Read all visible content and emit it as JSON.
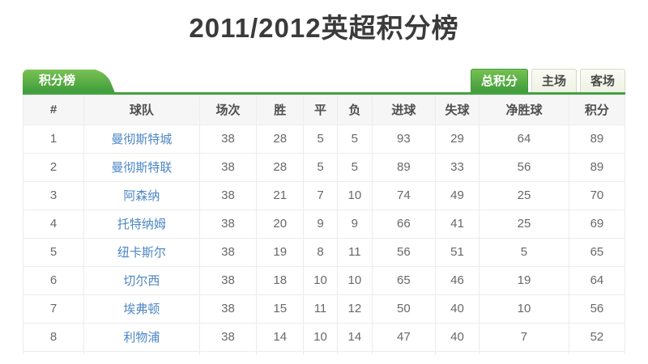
{
  "page": {
    "title": "2011/2012英超积分榜"
  },
  "tabs": {
    "standings_tab": "积分榜"
  },
  "filters": [
    {
      "id": "total",
      "label": "总积分",
      "active": true
    },
    {
      "id": "home",
      "label": "主场",
      "active": false
    },
    {
      "id": "away",
      "label": "客场",
      "active": false
    }
  ],
  "colors": {
    "accent_green": "#47a043",
    "link_blue": "#4c86c4",
    "header_bg": "#f6f6f6",
    "cell_border": "#ececec"
  },
  "table": {
    "headers": [
      "#",
      "球队",
      "场次",
      "胜",
      "平",
      "负",
      "进球",
      "失球",
      "净胜球",
      "积分"
    ],
    "rows": [
      {
        "rank": "1",
        "team": "曼彻斯特城",
        "stats": [
          "38",
          "28",
          "5",
          "5",
          "93",
          "29",
          "64",
          "89"
        ]
      },
      {
        "rank": "2",
        "team": "曼彻斯特联",
        "stats": [
          "38",
          "28",
          "5",
          "5",
          "89",
          "33",
          "56",
          "89"
        ]
      },
      {
        "rank": "3",
        "team": "阿森纳",
        "stats": [
          "38",
          "21",
          "7",
          "10",
          "74",
          "49",
          "25",
          "70"
        ]
      },
      {
        "rank": "4",
        "team": "托特纳姆",
        "stats": [
          "38",
          "20",
          "9",
          "9",
          "66",
          "41",
          "25",
          "69"
        ]
      },
      {
        "rank": "5",
        "team": "纽卡斯尔",
        "stats": [
          "38",
          "19",
          "8",
          "11",
          "56",
          "51",
          "5",
          "65"
        ]
      },
      {
        "rank": "6",
        "team": "切尔西",
        "stats": [
          "38",
          "18",
          "10",
          "10",
          "65",
          "46",
          "19",
          "64"
        ]
      },
      {
        "rank": "7",
        "team": "埃弗顿",
        "stats": [
          "38",
          "15",
          "11",
          "12",
          "50",
          "40",
          "10",
          "56"
        ]
      },
      {
        "rank": "8",
        "team": "利物浦",
        "stats": [
          "38",
          "14",
          "10",
          "14",
          "47",
          "40",
          "7",
          "52"
        ]
      }
    ]
  }
}
